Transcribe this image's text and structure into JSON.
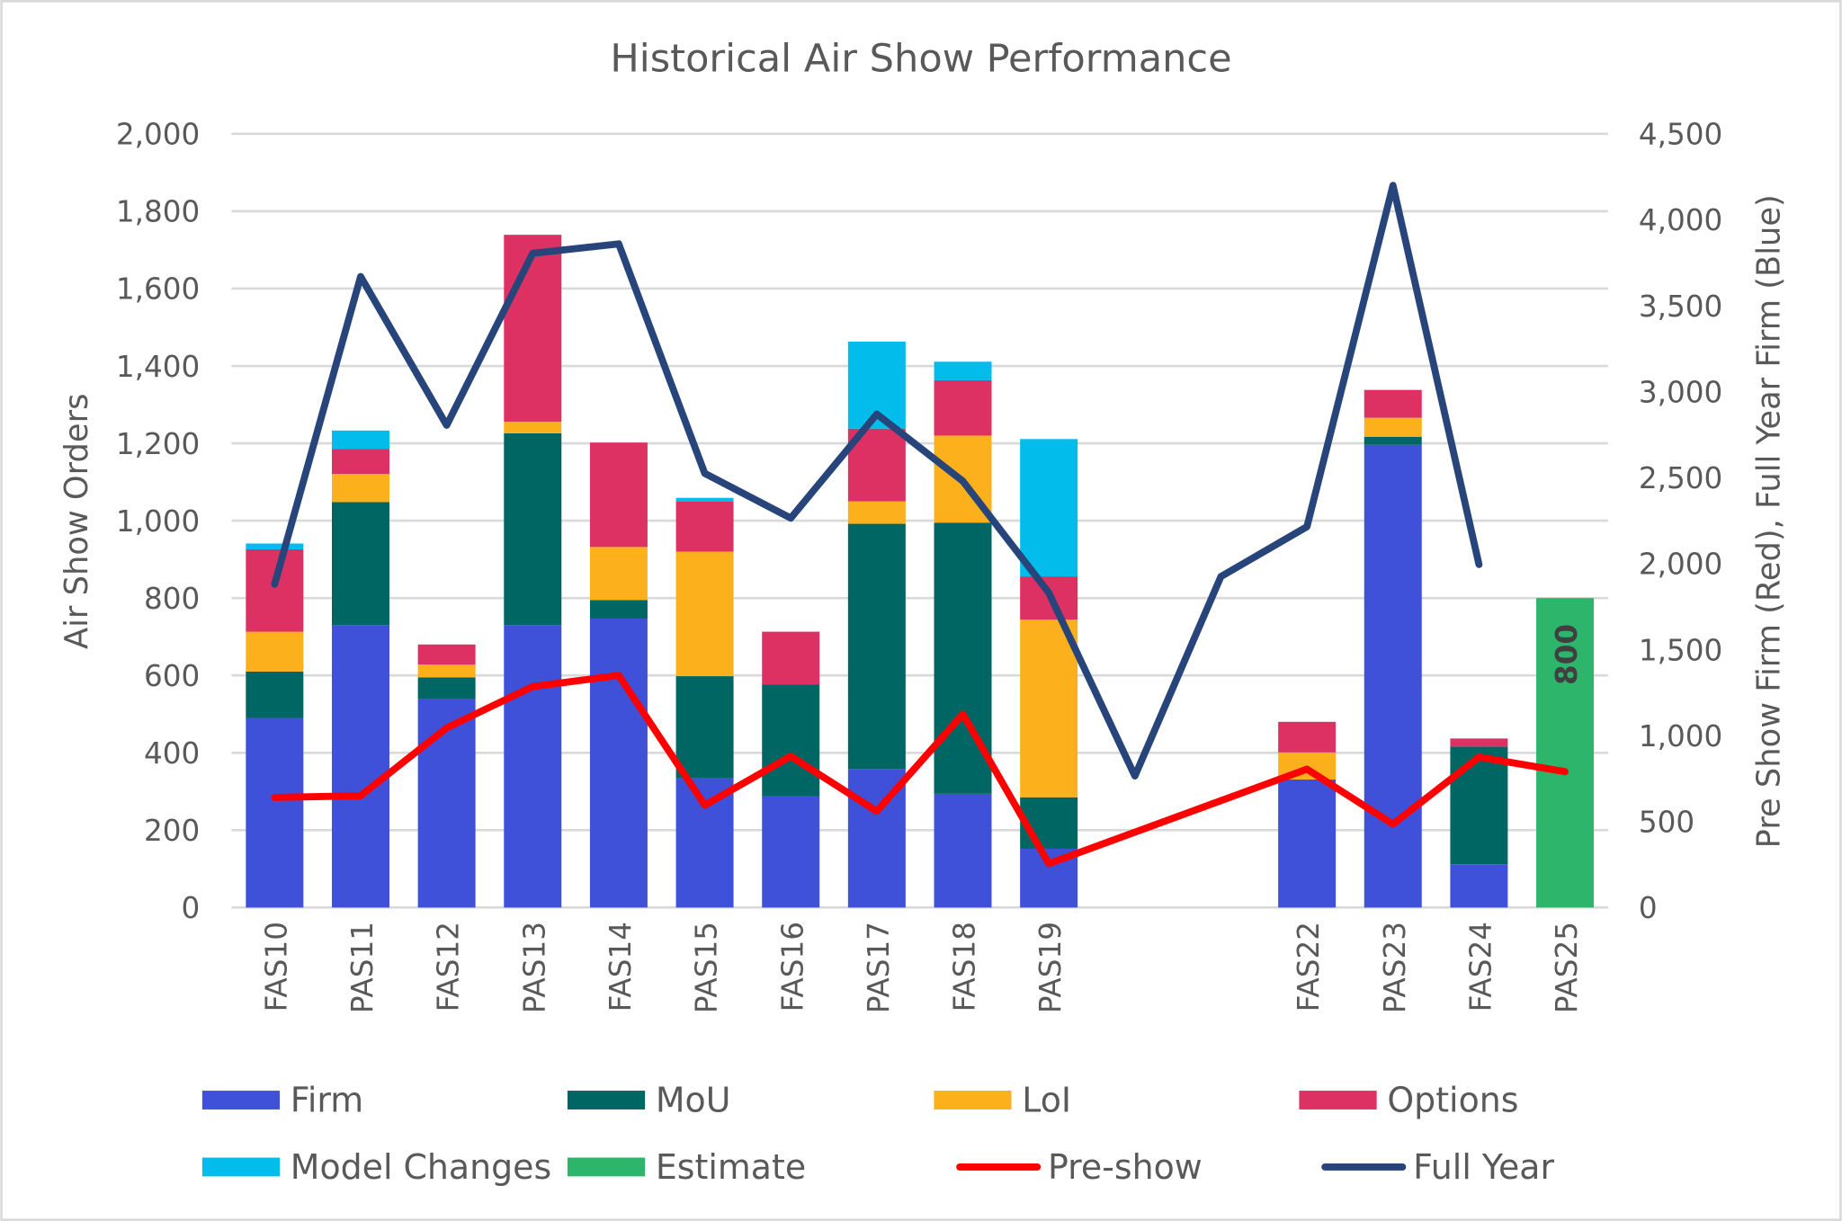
{
  "chart_data": {
    "type": "bar",
    "stacked": true,
    "title": "Historical Air Show Performance",
    "ylabel": "Air Show Orders",
    "y2label": "Pre Show Firm (Red), Full Year Firm (Blue)",
    "ylim": [
      0,
      2000
    ],
    "y2lim": [
      0,
      4500
    ],
    "yticks": [
      "0",
      "200",
      "400",
      "600",
      "800",
      "1,000",
      "1,200",
      "1,400",
      "1,600",
      "1,800",
      "2,000"
    ],
    "y2ticks": [
      "0",
      "500",
      "1,000",
      "1,500",
      "2,000",
      "2,500",
      "3,000",
      "3,500",
      "4,000",
      "4,500"
    ],
    "grid": true,
    "legend_position": "bottom",
    "categories": [
      "FAS10",
      "PAS11",
      "FAS12",
      "PAS13",
      "FAS14",
      "PAS15",
      "FAS16",
      "PAS17",
      "FAS18",
      "PAS19",
      "",
      "",
      "FAS22",
      "PAS23",
      "FAS24",
      "PAS25"
    ],
    "series": [
      {
        "name": "Firm",
        "kind": "bar",
        "color": "#3F51D9",
        "values": [
          490,
          730,
          540,
          730,
          747,
          334,
          288,
          358,
          294,
          152,
          null,
          null,
          331,
          1196,
          112,
          null
        ]
      },
      {
        "name": "MoU",
        "kind": "bar",
        "color": "#006663",
        "values": [
          120,
          318,
          55,
          496,
          48,
          264,
          289,
          634,
          701,
          133,
          null,
          null,
          0,
          21,
          304,
          null
        ]
      },
      {
        "name": "LoI",
        "kind": "bar",
        "color": "#FCB11C",
        "values": [
          103,
          73,
          33,
          30,
          137,
          322,
          0,
          58,
          225,
          459,
          null,
          null,
          70,
          49,
          0,
          null
        ]
      },
      {
        "name": "Options",
        "kind": "bar",
        "color": "#DD3163",
        "values": [
          213,
          64,
          52,
          483,
          270,
          130,
          136,
          188,
          143,
          112,
          null,
          null,
          79,
          72,
          21,
          null
        ]
      },
      {
        "name": "Model Changes",
        "kind": "bar",
        "color": "#02BDEC",
        "values": [
          15,
          48,
          0,
          0,
          0,
          9,
          0,
          225,
          48,
          355,
          null,
          null,
          0,
          0,
          0,
          null
        ]
      },
      {
        "name": "Estimate",
        "kind": "bar",
        "color": "#2EB56C",
        "values": [
          null,
          null,
          null,
          null,
          null,
          null,
          null,
          null,
          null,
          null,
          null,
          null,
          null,
          null,
          null,
          800
        ]
      },
      {
        "name": "Pre-show",
        "kind": "line",
        "axis": "right",
        "color": "#FF0000",
        "values": [
          640,
          650,
          1045,
          1285,
          1350,
          595,
          880,
          560,
          1125,
          255,
          null,
          null,
          805,
          485,
          875,
          790
        ]
      },
      {
        "name": "Full Year",
        "kind": "line",
        "axis": "right",
        "color": "#27457A",
        "values": [
          1880,
          3670,
          2805,
          3805,
          3860,
          2525,
          2265,
          2870,
          2480,
          1830,
          765,
          1925,
          2215,
          4200,
          1995,
          null
        ]
      }
    ],
    "data_labels": [
      {
        "category": "PAS25",
        "text": "800"
      }
    ]
  }
}
